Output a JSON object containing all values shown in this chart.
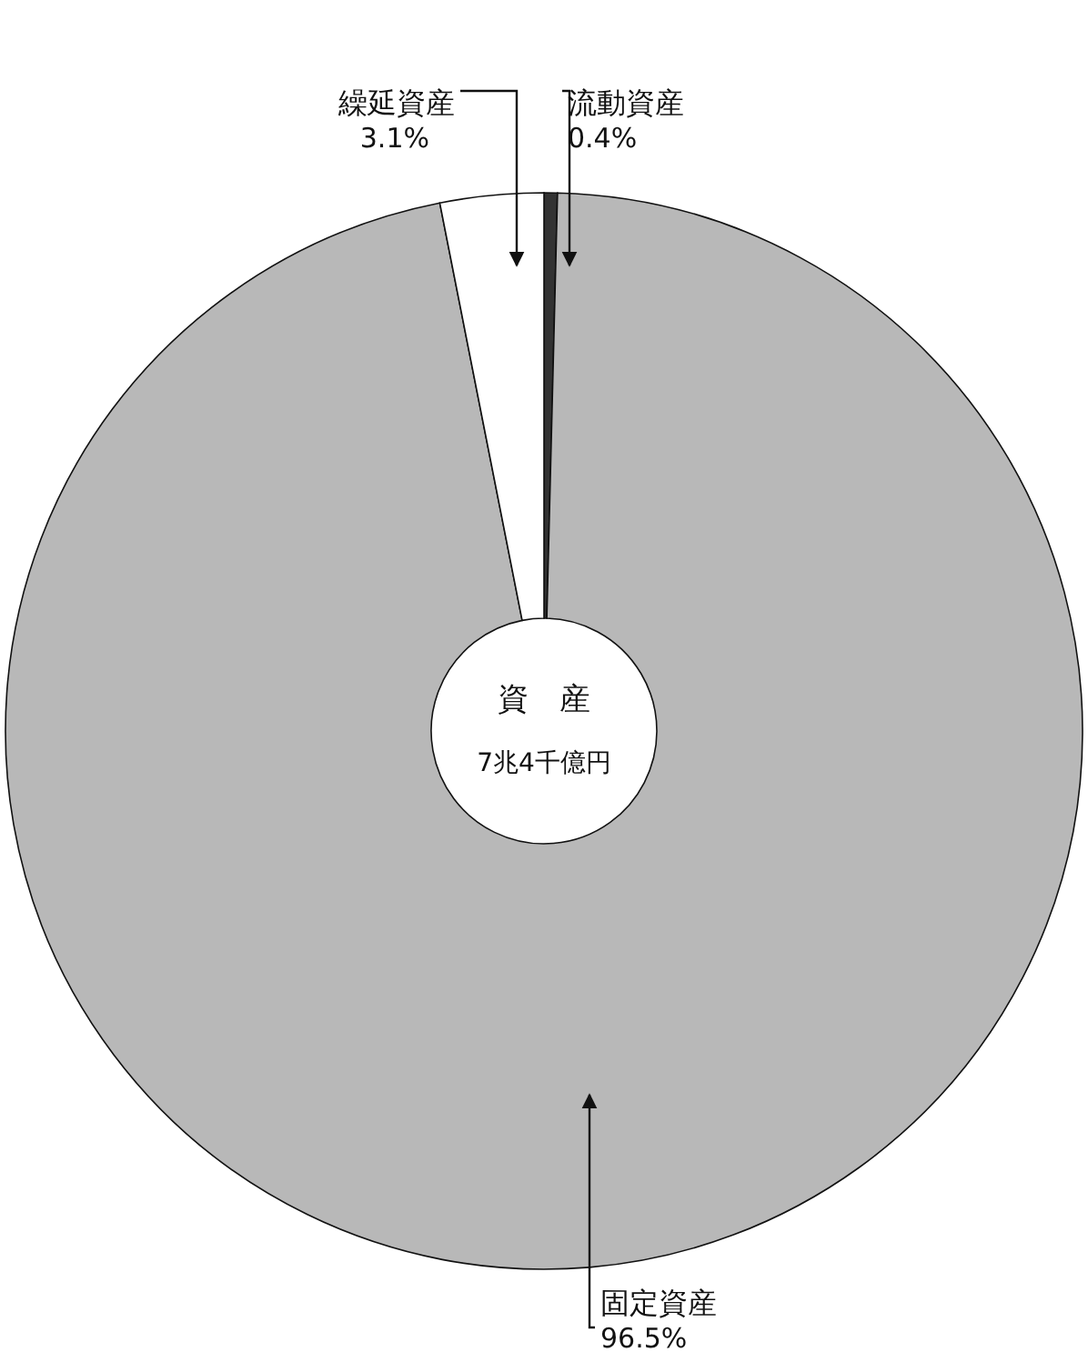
{
  "chart_data": {
    "type": "donut",
    "title": "資　産",
    "annotations": [
      "7兆4千億円"
    ],
    "categories": [
      "流動資産",
      "固定資産",
      "繰延資産"
    ],
    "values": [
      0.4,
      96.5,
      3.1
    ],
    "colors": [
      "#333333",
      "#b8b8b8",
      "#ffffff"
    ],
    "value_labels": [
      "0.4%",
      "96.5%",
      "3.1%"
    ]
  }
}
